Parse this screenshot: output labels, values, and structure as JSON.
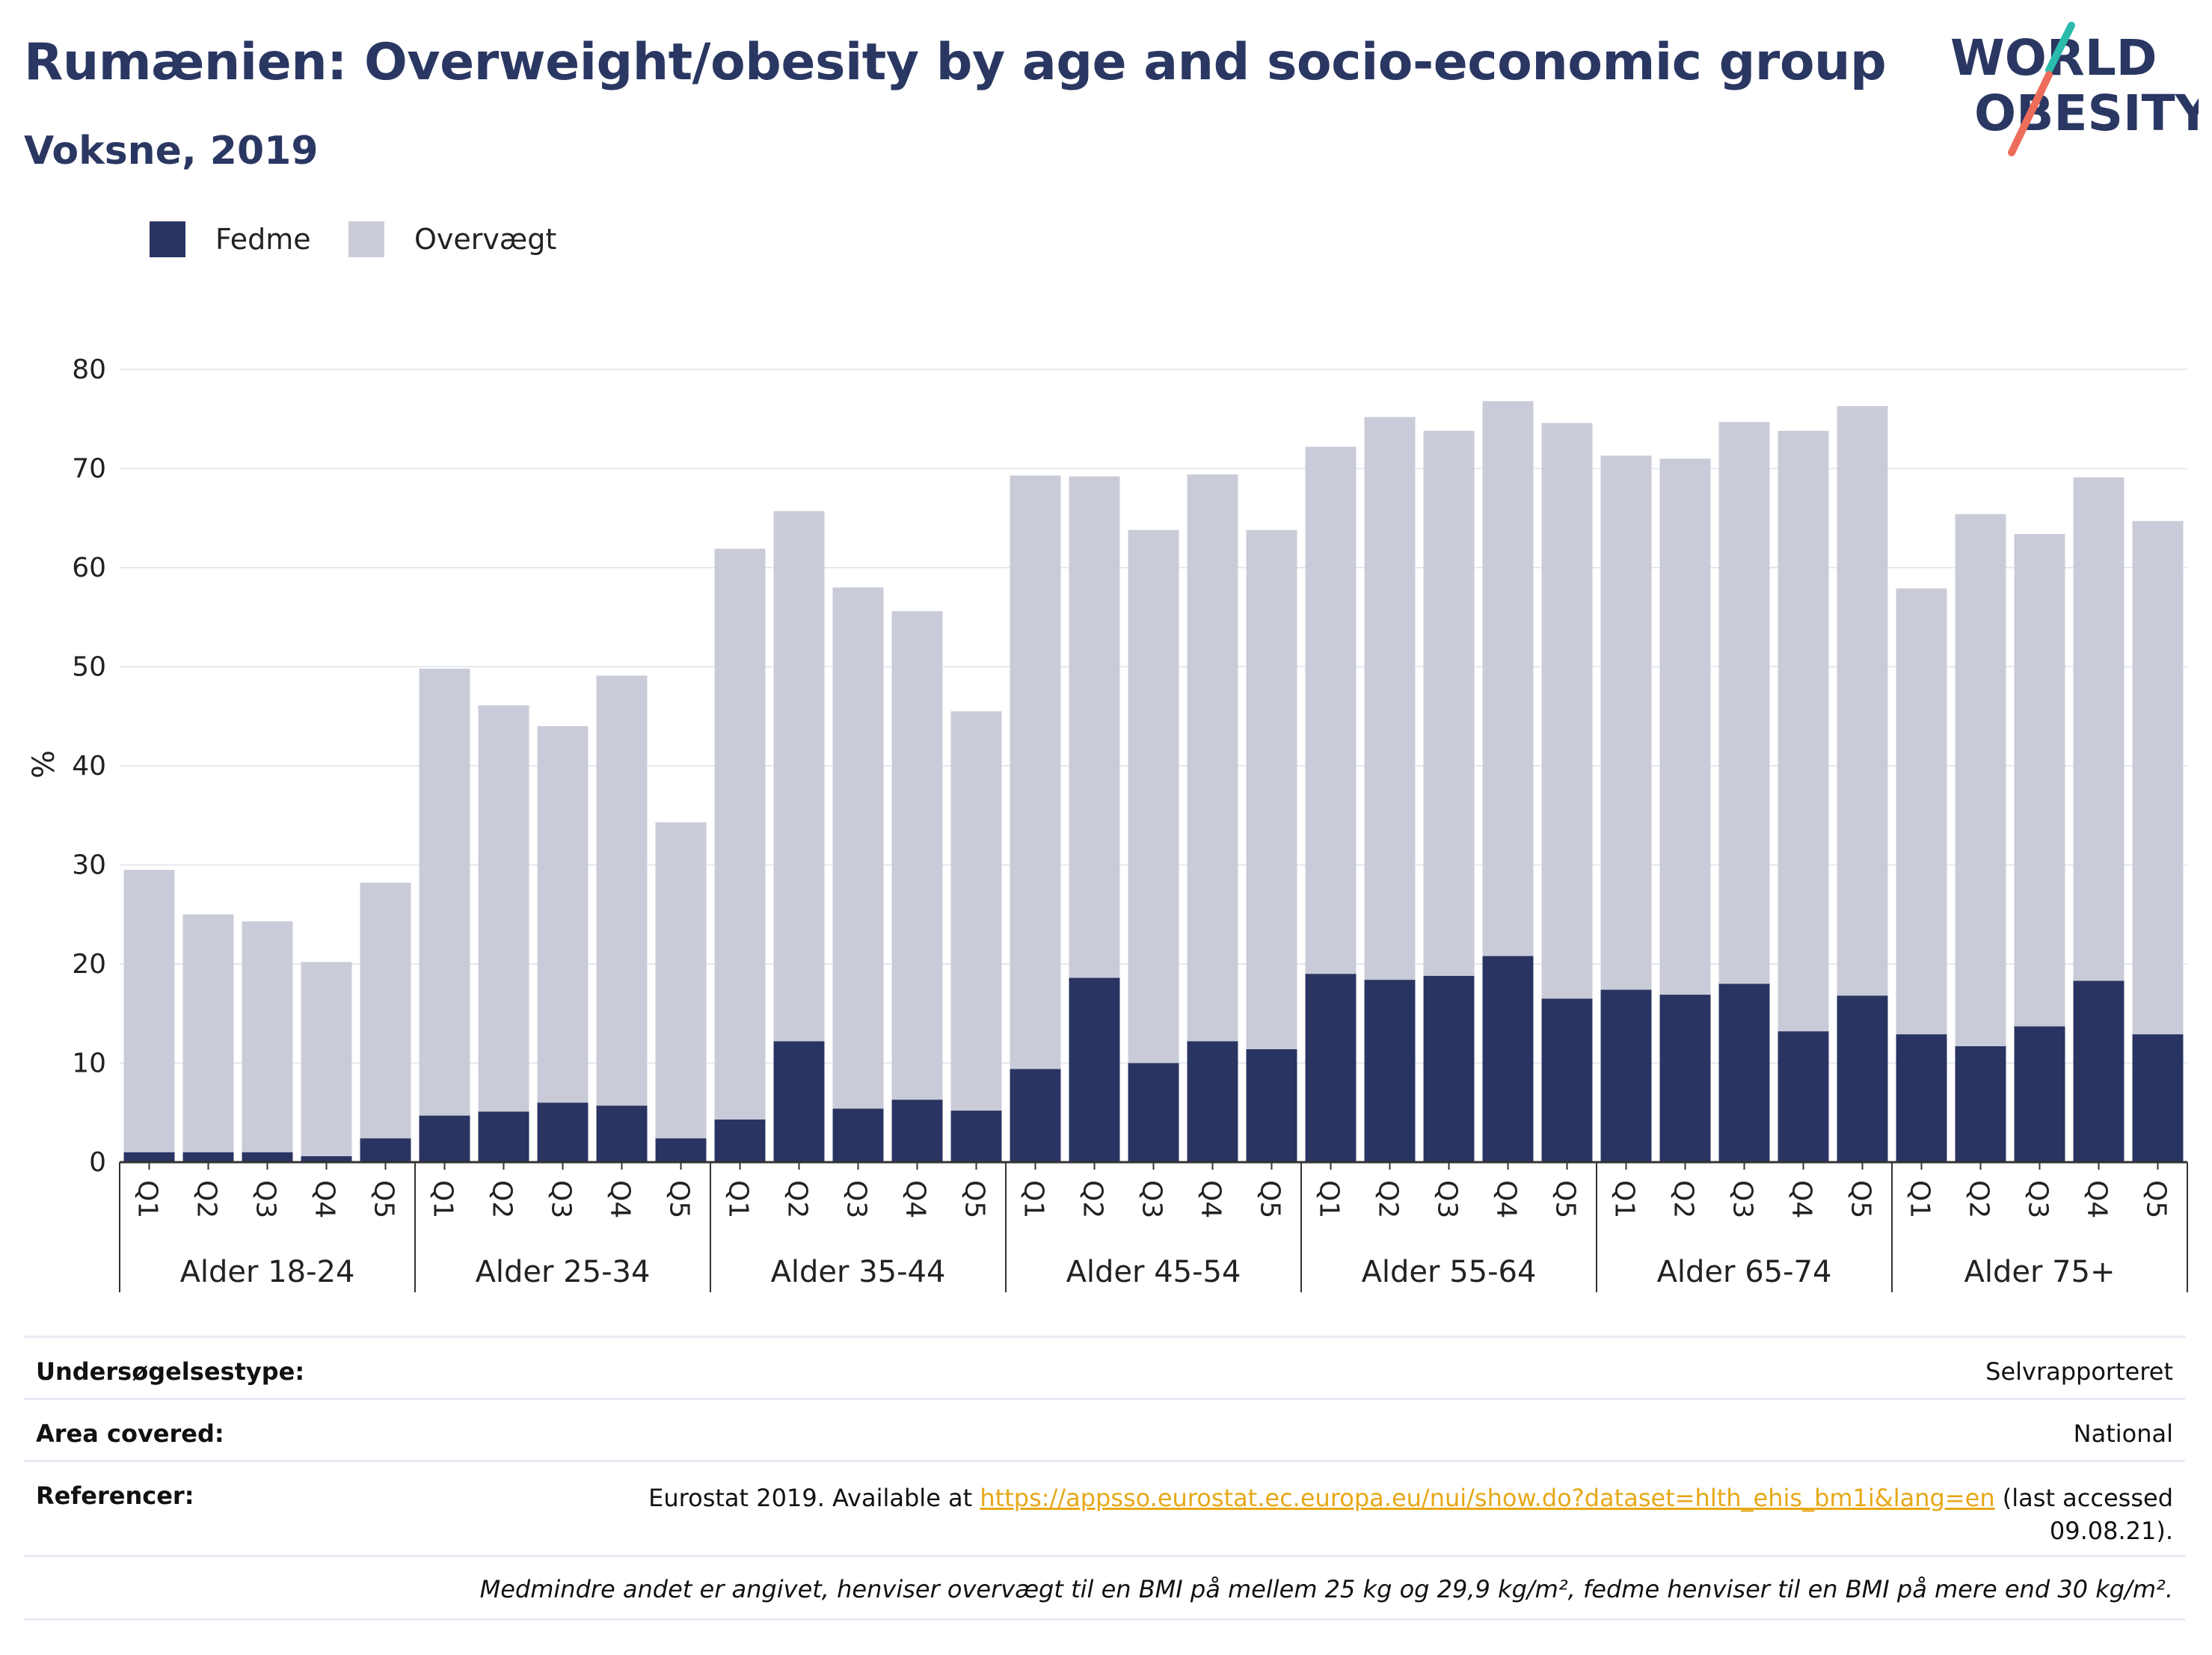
{
  "header": {
    "title": "Rumænien: Overweight/obesity by age and socio-economic group",
    "subtitle": "Voksne, 2019"
  },
  "logo": {
    "line1": "WORLD",
    "line2": "OBESITY"
  },
  "colors": {
    "fedme": "#293462",
    "overvaegt": "#c9ccd8",
    "title": "#2a3762",
    "grid": "#e6e8ef",
    "link": "#e6a817"
  },
  "chart_data": {
    "type": "bar",
    "stacked": true,
    "ylabel": "%",
    "ylim": [
      0,
      80
    ],
    "yticks": [
      0,
      10,
      20,
      30,
      40,
      50,
      60,
      70,
      80
    ],
    "grid": true,
    "legend_position": "top-left",
    "groups": [
      "Alder 18-24",
      "Alder 25-34",
      "Alder 35-44",
      "Alder 45-54",
      "Alder 55-64",
      "Alder 65-74",
      "Alder 75+"
    ],
    "subcategories": [
      "Q1",
      "Q2",
      "Q3",
      "Q4",
      "Q5"
    ],
    "series": [
      {
        "name": "Fedme",
        "color": "#293462",
        "values": [
          [
            1.0,
            1.0,
            1.0,
            0.6,
            2.4
          ],
          [
            4.7,
            5.1,
            6.0,
            5.7,
            2.4
          ],
          [
            4.3,
            12.2,
            5.4,
            6.3,
            5.2
          ],
          [
            9.4,
            18.6,
            10.0,
            12.2,
            11.4
          ],
          [
            19.0,
            18.4,
            18.8,
            20.8,
            16.5
          ],
          [
            17.4,
            16.9,
            18.0,
            13.2,
            16.8
          ],
          [
            12.9,
            11.7,
            13.7,
            18.3,
            12.9
          ]
        ]
      },
      {
        "name": "Overvægt",
        "color": "#c9ccd8",
        "values": [
          [
            28.5,
            24.0,
            23.3,
            19.6,
            25.8
          ],
          [
            45.1,
            41.0,
            38.0,
            43.4,
            31.9
          ],
          [
            57.6,
            53.5,
            52.6,
            49.3,
            40.3
          ],
          [
            59.9,
            50.6,
            53.8,
            57.2,
            52.4
          ],
          [
            53.2,
            56.8,
            55.0,
            56.0,
            58.1
          ],
          [
            53.9,
            54.1,
            56.7,
            60.6,
            59.5
          ],
          [
            45.0,
            53.7,
            49.7,
            50.8,
            51.8
          ]
        ]
      }
    ]
  },
  "info": {
    "rows": [
      {
        "key": "Undersøgelsestype:",
        "value": "Selvrapporteret"
      },
      {
        "key": "Area covered:",
        "value": "National"
      }
    ],
    "references_key": "Referencer:",
    "references_pre": "Eurostat 2019. Available at ",
    "references_link": "https://appsso.eurostat.ec.europa.eu/nui/show.do?dataset=hlth_ehis_bm1i&lang=en",
    "references_post": " (last accessed",
    "references_date": "09.08.21).",
    "note": "Medmindre andet er angivet, henviser overvægt til en BMI på mellem 25 kg og 29,9 kg/m², fedme henviser til en BMI på mere end 30 kg/m²."
  }
}
